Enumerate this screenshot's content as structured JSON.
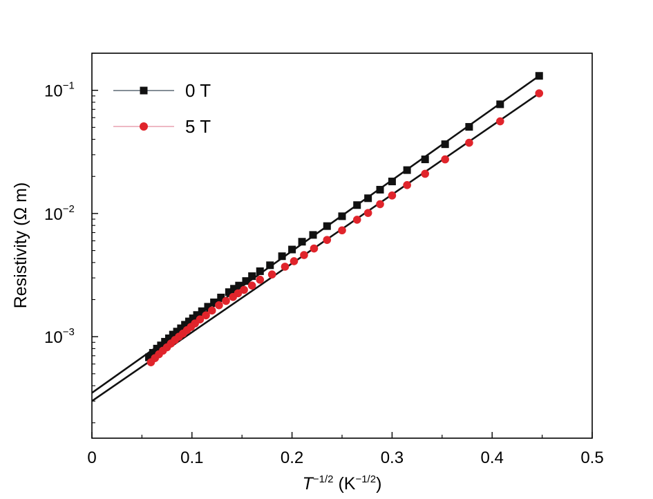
{
  "chart_data": {
    "type": "scatter",
    "xlabel": {
      "main": "T",
      "exp1": "−1/2",
      "unit_open": " (K",
      "exp2": "−1/2",
      "unit_close": ")"
    },
    "ylabel": "Resistivity (Ω m)",
    "xlim": [
      0,
      0.5
    ],
    "ylim": [
      0.00015,
      0.2
    ],
    "yscale": "log",
    "x_ticks": [
      {
        "value": 0,
        "label": "0"
      },
      {
        "value": 0.1,
        "label": "0.1"
      },
      {
        "value": 0.2,
        "label": "0.2"
      },
      {
        "value": 0.3,
        "label": "0.3"
      },
      {
        "value": 0.4,
        "label": "0.4"
      },
      {
        "value": 0.5,
        "label": "0.5"
      }
    ],
    "y_ticks": [
      {
        "value": 0.001,
        "base": "10",
        "exp": "−3"
      },
      {
        "value": 0.01,
        "base": "10",
        "exp": "−2"
      },
      {
        "value": 0.1,
        "base": "10",
        "exp": "−1"
      }
    ],
    "legend_position": "top-left",
    "series": [
      {
        "name": "0 T",
        "marker": "square",
        "color": "#111111",
        "legend_line_color": "#3a4a58",
        "x": [
          0.057,
          0.061,
          0.065,
          0.069,
          0.073,
          0.077,
          0.081,
          0.085,
          0.089,
          0.093,
          0.097,
          0.101,
          0.105,
          0.11,
          0.116,
          0.122,
          0.129,
          0.137,
          0.142,
          0.147,
          0.154,
          0.16,
          0.168,
          0.178,
          0.19,
          0.2,
          0.21,
          0.221,
          0.235,
          0.25,
          0.265,
          0.276,
          0.288,
          0.3,
          0.315,
          0.333,
          0.353,
          0.377,
          0.408,
          0.447
        ],
        "y": [
          0.00068,
          0.00074,
          0.0008,
          0.00085,
          0.00091,
          0.00097,
          0.00104,
          0.0011,
          0.00117,
          0.00125,
          0.00133,
          0.00141,
          0.0015,
          0.00161,
          0.00175,
          0.0019,
          0.00208,
          0.0023,
          0.00245,
          0.0026,
          0.00283,
          0.0031,
          0.0034,
          0.0038,
          0.0045,
          0.0051,
          0.0059,
          0.0067,
          0.0079,
          0.0095,
          0.0117,
          0.0133,
          0.0156,
          0.0182,
          0.0225,
          0.0275,
          0.0365,
          0.0505,
          0.077,
          0.131
        ],
        "fit": {
          "x": [
            0,
            0.447
          ],
          "y": [
            0.00035,
            0.131
          ]
        }
      },
      {
        "name": "5 T",
        "marker": "circle",
        "color": "#e0242b",
        "legend_line_color": "#e38da0",
        "x": [
          0.059,
          0.063,
          0.067,
          0.071,
          0.075,
          0.079,
          0.083,
          0.087,
          0.091,
          0.095,
          0.099,
          0.103,
          0.108,
          0.114,
          0.12,
          0.127,
          0.134,
          0.141,
          0.146,
          0.152,
          0.16,
          0.168,
          0.18,
          0.193,
          0.202,
          0.212,
          0.222,
          0.235,
          0.25,
          0.265,
          0.276,
          0.288,
          0.3,
          0.315,
          0.333,
          0.353,
          0.377,
          0.408,
          0.447
        ],
        "y": [
          0.00062,
          0.00067,
          0.00072,
          0.00077,
          0.00082,
          0.00088,
          0.00094,
          0.001,
          0.00106,
          0.00113,
          0.0012,
          0.00128,
          0.00138,
          0.00149,
          0.00163,
          0.0018,
          0.00195,
          0.0021,
          0.00225,
          0.0024,
          0.0026,
          0.0029,
          0.0032,
          0.0037,
          0.0041,
          0.0046,
          0.0052,
          0.0061,
          0.0073,
          0.0089,
          0.0101,
          0.0119,
          0.014,
          0.017,
          0.021,
          0.0275,
          0.0375,
          0.056,
          0.0945
        ],
        "fit": {
          "x": [
            0,
            0.447
          ],
          "y": [
            0.0003,
            0.0945
          ]
        }
      }
    ]
  }
}
